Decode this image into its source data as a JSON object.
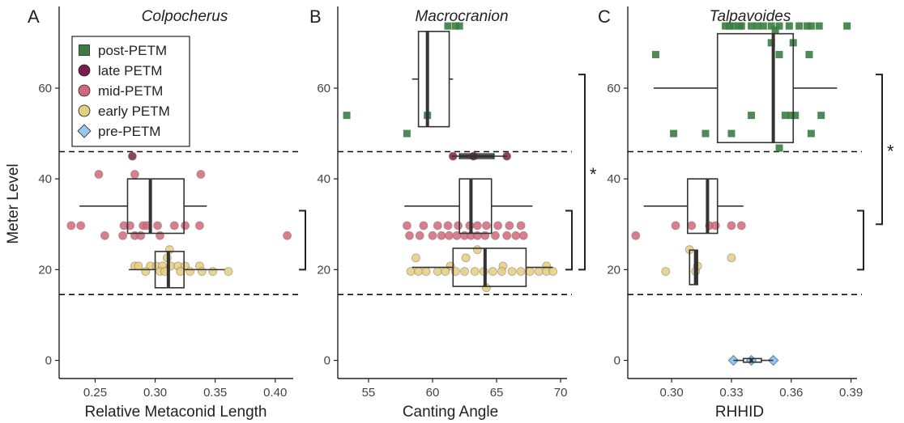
{
  "y_axis_title": "Meter Level",
  "legend": [
    {
      "label": "post-PETM",
      "shape": "square",
      "color": "#3a7d44"
    },
    {
      "label": "late PETM",
      "shape": "circle",
      "color": "#7a1f4b"
    },
    {
      "label": "mid-PETM",
      "shape": "circle",
      "color": "#d1697a"
    },
    {
      "label": "early PETM",
      "shape": "circle",
      "color": "#e3cf7d"
    },
    {
      "label": "pre-PETM",
      "shape": "diamond",
      "color": "#9cc7ea"
    }
  ],
  "chart_data": [
    {
      "type": "scatter",
      "panel": "A",
      "title": "Colpocherus",
      "xlabel": "Relative Metaconid Length",
      "ylabel": "Meter Level",
      "xlim": [
        0.22,
        0.415
      ],
      "ylim": [
        -4,
        78
      ],
      "xticks": [
        0.25,
        0.3,
        0.35,
        0.4
      ],
      "xtick_labels": [
        "0.25",
        "0.30",
        "0.35",
        "0.40"
      ],
      "yticks": [
        0,
        20,
        40,
        60
      ],
      "hlines": [
        14.5,
        46
      ],
      "boxplots": [
        {
          "series": "mid-PETM",
          "y": 34,
          "half_height": 6,
          "whisker_low": 0.237,
          "q1": 0.277,
          "median": 0.296,
          "q3": 0.324,
          "whisker_high": 0.343
        },
        {
          "series": "early PETM",
          "y": 20,
          "half_height": 4,
          "whisker_low": 0.278,
          "q1": 0.3,
          "median": 0.311,
          "q3": 0.324,
          "whisker_high": 0.358
        }
      ],
      "significance": [
        {
          "y_low": 20,
          "y_high": 33,
          "label": ""
        }
      ],
      "series": [
        {
          "name": "late PETM",
          "points": [
            [
              0.281,
              45
            ]
          ]
        },
        {
          "name": "mid-PETM",
          "points": [
            [
              0.253,
              41
            ],
            [
              0.283,
              41
            ],
            [
              0.338,
              41
            ],
            [
              0.23,
              29.7
            ],
            [
              0.238,
              29.7
            ],
            [
              0.274,
              29.7
            ],
            [
              0.279,
              29.7
            ],
            [
              0.29,
              29.7
            ],
            [
              0.293,
              29.7
            ],
            [
              0.302,
              29.7
            ],
            [
              0.316,
              29.7
            ],
            [
              0.325,
              29.7
            ],
            [
              0.337,
              29.7
            ],
            [
              0.258,
              27.5
            ],
            [
              0.273,
              27.5
            ],
            [
              0.283,
              27.5
            ],
            [
              0.288,
              27.5
            ],
            [
              0.304,
              27.5
            ],
            [
              0.41,
              27.5
            ]
          ]
        },
        {
          "name": "early PETM",
          "points": [
            [
              0.312,
              24.4
            ],
            [
              0.31,
              22.6
            ],
            [
              0.283,
              20.8
            ],
            [
              0.286,
              20.8
            ],
            [
              0.296,
              20.8
            ],
            [
              0.301,
              20.8
            ],
            [
              0.306,
              20.8
            ],
            [
              0.313,
              20.8
            ],
            [
              0.319,
              20.8
            ],
            [
              0.325,
              20.8
            ],
            [
              0.337,
              20.8
            ],
            [
              0.292,
              19.6
            ],
            [
              0.304,
              19.6
            ],
            [
              0.308,
              19.6
            ],
            [
              0.321,
              19.6
            ],
            [
              0.329,
              19.6
            ],
            [
              0.339,
              19.6
            ],
            [
              0.348,
              19.6
            ],
            [
              0.361,
              19.6
            ]
          ]
        }
      ]
    },
    {
      "type": "scatter",
      "panel": "B",
      "title": "Macrocranion",
      "xlabel": "Canting Angle",
      "ylabel": "",
      "xlim": [
        52.6,
        70.5
      ],
      "ylim": [
        -4,
        78
      ],
      "xticks": [
        55,
        60,
        65,
        70
      ],
      "xtick_labels": [
        "55",
        "60",
        "65",
        "70"
      ],
      "yticks": [
        0,
        20,
        40,
        60
      ],
      "hlines": [
        14.5,
        46
      ],
      "boxplots": [
        {
          "series": "post-PETM",
          "y": 62,
          "half_height": 10.5,
          "whisker_low": 58.4,
          "q1": 58.9,
          "median": 59.6,
          "q3": 61.3,
          "whisker_high": 61.6
        },
        {
          "series": "late PETM",
          "y": 45,
          "half_height": 0,
          "whisker_low": 61.5,
          "q1": 62.1,
          "median": 63.1,
          "q3": 64.8,
          "whisker_high": 65.8
        },
        {
          "series": "mid-PETM",
          "y": 34,
          "half_height": 6,
          "whisker_low": 57.8,
          "q1": 62.1,
          "median": 63.0,
          "q3": 64.6,
          "whisker_high": 67.8
        },
        {
          "series": "early PETM",
          "y": 20.5,
          "half_height": 4.2,
          "whisker_low": 58.4,
          "q1": 61.6,
          "median": 64.1,
          "q3": 67.3,
          "whisker_high": 69.4
        }
      ],
      "significance": [
        {
          "y_low": 20,
          "y_high": 33,
          "label": ""
        },
        {
          "y_low": 20,
          "y_high": 63,
          "label": "*"
        }
      ],
      "series": [
        {
          "name": "post-PETM",
          "points": [
            [
              61.2,
              73.7
            ],
            [
              61.8,
              73.7
            ],
            [
              62.1,
              73.7
            ],
            [
              53.3,
              54
            ],
            [
              59.6,
              54
            ],
            [
              58.0,
              50
            ]
          ]
        },
        {
          "name": "late PETM",
          "points": [
            [
              61.6,
              45
            ],
            [
              63.2,
              45
            ],
            [
              65.8,
              45
            ]
          ]
        },
        {
          "name": "mid-PETM",
          "points": [
            [
              58.0,
              29.7
            ],
            [
              59.3,
              29.7
            ],
            [
              60.4,
              29.7
            ],
            [
              61.2,
              29.7
            ],
            [
              62.0,
              29.7
            ],
            [
              62.9,
              29.7
            ],
            [
              63.5,
              29.7
            ],
            [
              64.2,
              29.7
            ],
            [
              65.1,
              29.7
            ],
            [
              66.0,
              29.7
            ],
            [
              66.9,
              29.7
            ],
            [
              58.2,
              27.5
            ],
            [
              59.0,
              27.5
            ],
            [
              60.0,
              27.5
            ],
            [
              60.7,
              27.5
            ],
            [
              61.3,
              27.5
            ],
            [
              61.9,
              27.5
            ],
            [
              62.5,
              27.5
            ],
            [
              63.0,
              27.5
            ],
            [
              63.5,
              27.5
            ],
            [
              64.1,
              27.5
            ],
            [
              64.9,
              27.5
            ],
            [
              65.8,
              27.5
            ],
            [
              66.5,
              27.5
            ],
            [
              67.1,
              27.5
            ]
          ]
        },
        {
          "name": "early PETM",
          "points": [
            [
              58.7,
              22.6
            ],
            [
              61.4,
              20.8
            ],
            [
              65.5,
              20.8
            ],
            [
              68.9,
              20.8
            ],
            [
              62.6,
              22.6
            ],
            [
              63.5,
              24.4
            ],
            [
              58.3,
              19.6
            ],
            [
              58.9,
              19.6
            ],
            [
              59.5,
              19.6
            ],
            [
              60.4,
              19.6
            ],
            [
              61.0,
              19.6
            ],
            [
              61.8,
              19.6
            ],
            [
              62.5,
              19.6
            ],
            [
              63.3,
              19.6
            ],
            [
              64.0,
              19.6
            ],
            [
              64.7,
              19.6
            ],
            [
              65.4,
              19.6
            ],
            [
              66.2,
              19.6
            ],
            [
              66.9,
              19.6
            ],
            [
              67.6,
              19.6
            ],
            [
              68.3,
              19.6
            ],
            [
              68.9,
              19.6
            ],
            [
              69.4,
              19.6
            ],
            [
              64.2,
              16.0
            ]
          ]
        }
      ]
    },
    {
      "type": "scatter",
      "panel": "C",
      "title": "Talpavoides",
      "xlabel": "RHHID",
      "ylabel": "",
      "xlim": [
        0.278,
        0.393
      ],
      "ylim": [
        -4,
        78
      ],
      "xticks": [
        0.3,
        0.33,
        0.36,
        0.39
      ],
      "xtick_labels": [
        "0.30",
        "0.33",
        "0.36",
        "0.39"
      ],
      "yticks": [
        0,
        20,
        40,
        60
      ],
      "hlines": [
        14.5,
        46
      ],
      "boxplots": [
        {
          "series": "post-PETM",
          "y": 60,
          "half_height": 12,
          "whisker_low": 0.291,
          "q1": 0.323,
          "median": 0.351,
          "q3": 0.361,
          "whisker_high": 0.383
        },
        {
          "series": "mid-PETM",
          "y": 34,
          "half_height": 6,
          "whisker_low": 0.286,
          "q1": 0.308,
          "median": 0.318,
          "q3": 0.323,
          "whisker_high": 0.336
        },
        {
          "series": "early PETM",
          "y": 20.5,
          "half_height": 3.8,
          "whisker_low": 0.309,
          "q1": 0.309,
          "median": 0.312,
          "q3": 0.313,
          "whisker_high": 0.313
        },
        {
          "series": "pre-PETM",
          "y": 0,
          "half_height": 0.4,
          "whisker_low": 0.331,
          "q1": 0.336,
          "median": 0.34,
          "q3": 0.345,
          "whisker_high": 0.351
        }
      ],
      "significance": [
        {
          "y_low": 20,
          "y_high": 33,
          "label": ""
        },
        {
          "y_low": 30,
          "y_high": 63,
          "label": "*"
        }
      ],
      "series": [
        {
          "name": "post-PETM",
          "points": [
            [
              0.327,
              73.7
            ],
            [
              0.329,
              73.7
            ],
            [
              0.331,
              73.7
            ],
            [
              0.334,
              73.7
            ],
            [
              0.335,
              73.7
            ],
            [
              0.34,
              73.7
            ],
            [
              0.343,
              73.7
            ],
            [
              0.346,
              73.7
            ],
            [
              0.35,
              73.7
            ],
            [
              0.354,
              73.7
            ],
            [
              0.359,
              73.7
            ],
            [
              0.364,
              73.7
            ],
            [
              0.368,
              73.7
            ],
            [
              0.37,
              73.7
            ],
            [
              0.374,
              73.7
            ],
            [
              0.388,
              73.7
            ],
            [
              0.352,
              72.8
            ],
            [
              0.35,
              70
            ],
            [
              0.361,
              70
            ],
            [
              0.292,
              67.4
            ],
            [
              0.354,
              67.4
            ],
            [
              0.369,
              67.4
            ],
            [
              0.34,
              54
            ],
            [
              0.357,
              54
            ],
            [
              0.36,
              54
            ],
            [
              0.362,
              54
            ],
            [
              0.375,
              54
            ],
            [
              0.301,
              50
            ],
            [
              0.317,
              50
            ],
            [
              0.33,
              50
            ],
            [
              0.37,
              50
            ],
            [
              0.354,
              46.8
            ]
          ]
        },
        {
          "name": "mid-PETM",
          "points": [
            [
              0.282,
              27.5
            ],
            [
              0.302,
              29.7
            ],
            [
              0.31,
              29.7
            ],
            [
              0.319,
              29.7
            ],
            [
              0.322,
              29.7
            ],
            [
              0.33,
              29.7
            ],
            [
              0.335,
              29.7
            ]
          ]
        },
        {
          "name": "early PETM",
          "points": [
            [
              0.309,
              24.4
            ],
            [
              0.33,
              22.6
            ],
            [
              0.313,
              20.8
            ],
            [
              0.297,
              19.6
            ],
            [
              0.312,
              19.6
            ]
          ]
        },
        {
          "name": "pre-PETM",
          "points": [
            [
              0.331,
              0
            ],
            [
              0.34,
              0
            ],
            [
              0.351,
              0
            ]
          ]
        }
      ]
    }
  ]
}
